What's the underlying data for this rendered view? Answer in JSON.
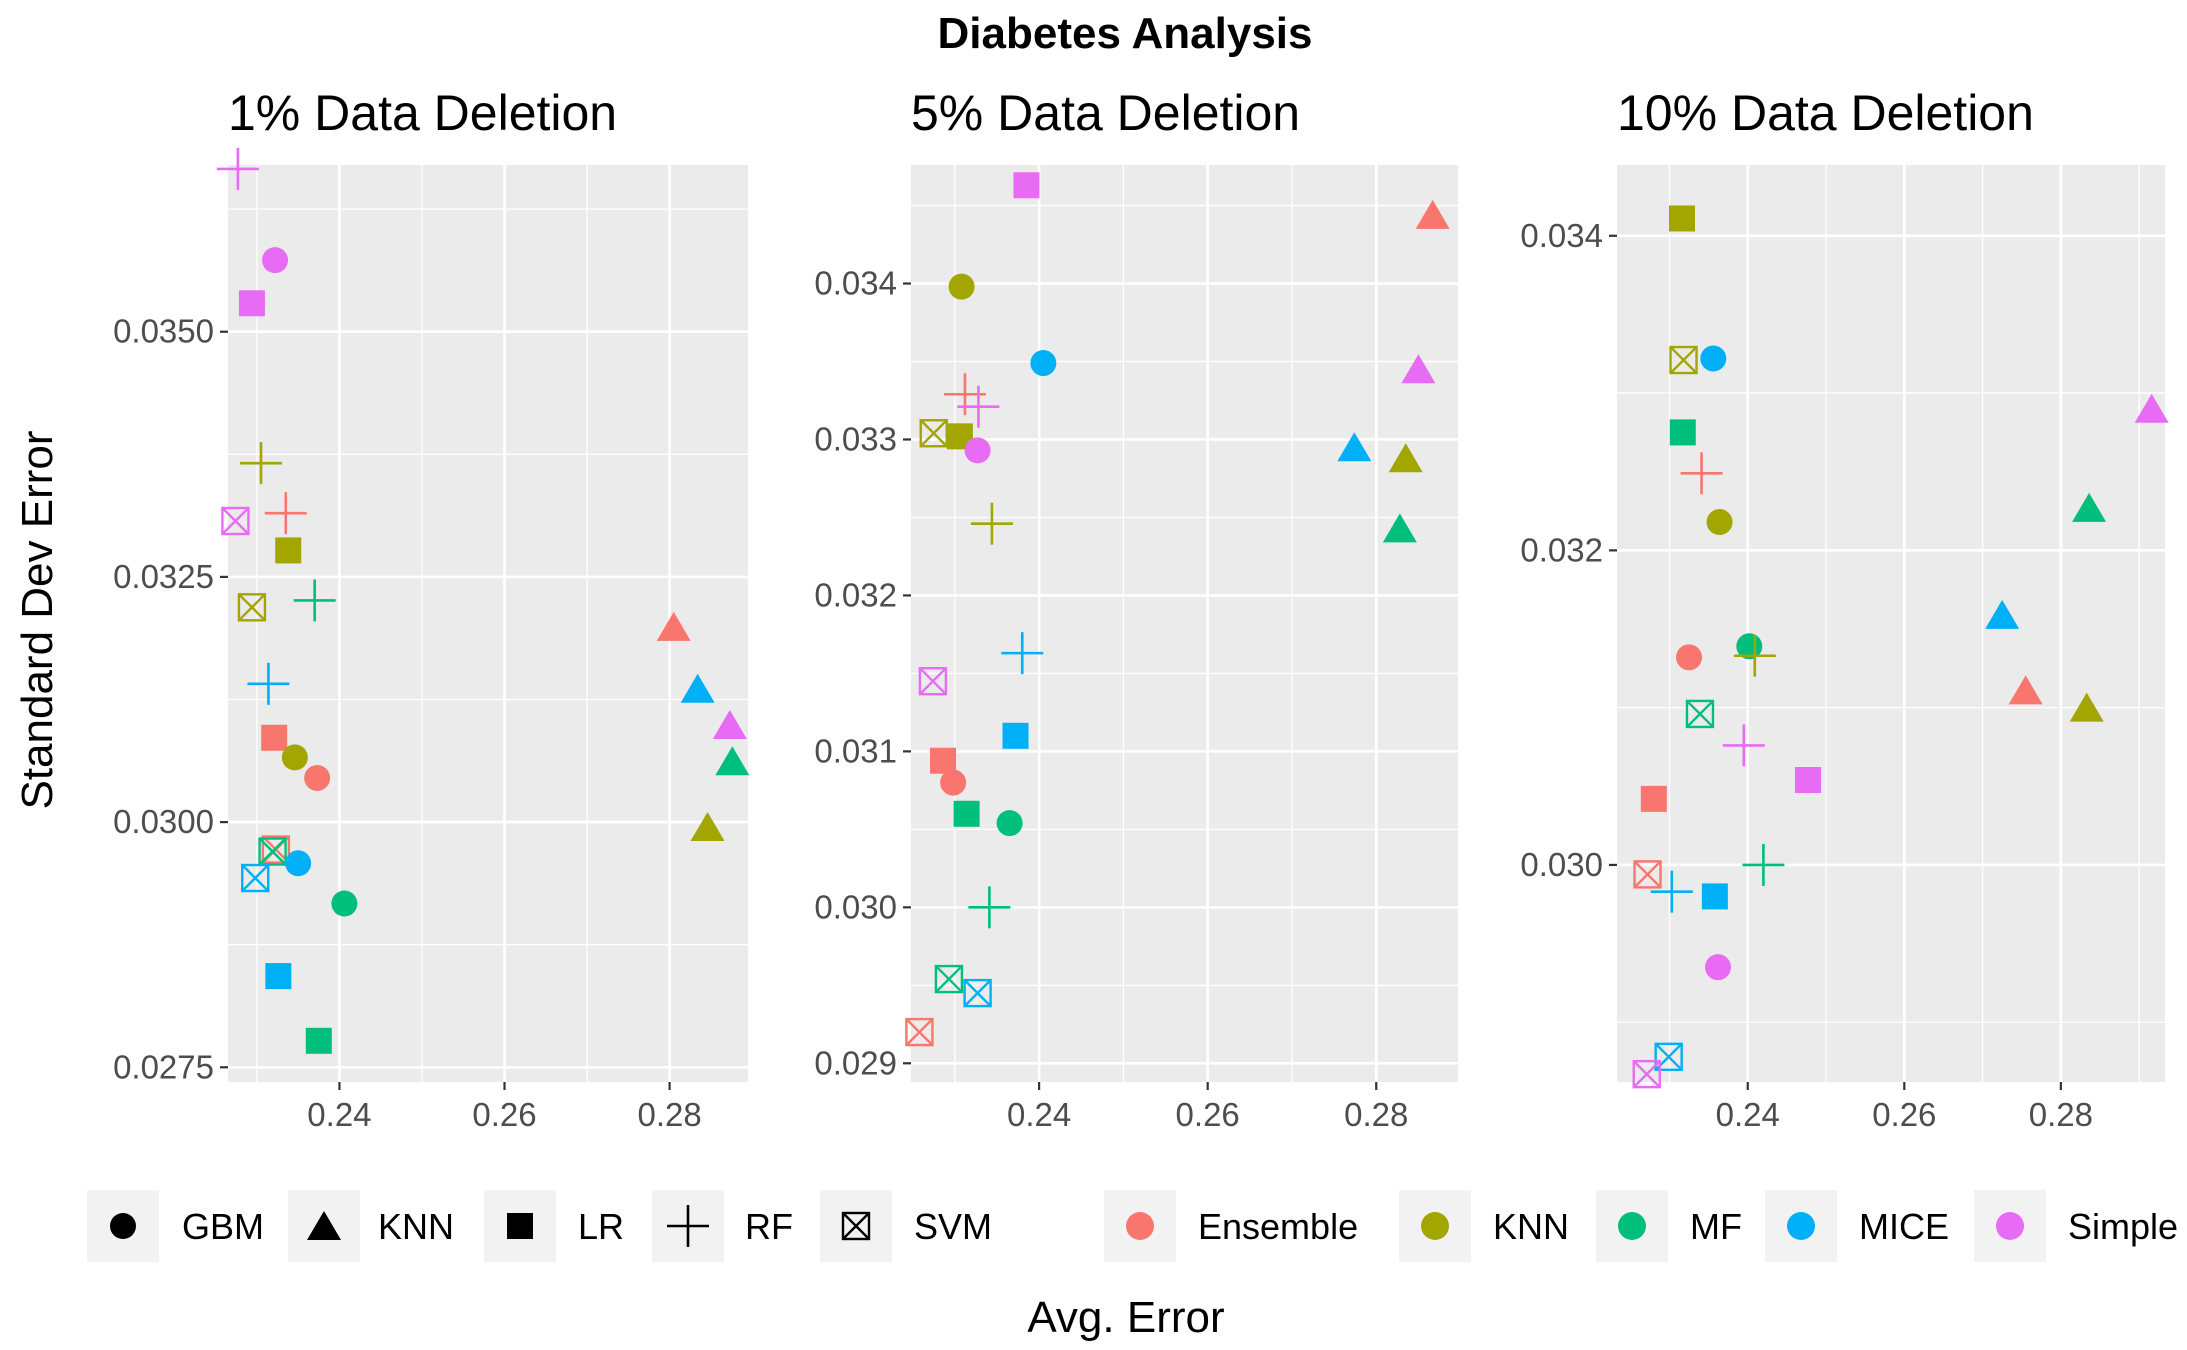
{
  "chart_data": {
    "type": "scatter",
    "title": "Diabetes Analysis",
    "xlabel": "Avg. Error",
    "ylabel": "Standard Dev Error",
    "grid": true,
    "legend_position": "bottom",
    "shape_legend": [
      {
        "name": "GBM",
        "shape": "circle"
      },
      {
        "name": "KNN",
        "shape": "triangle"
      },
      {
        "name": "LR",
        "shape": "square"
      },
      {
        "name": "RF",
        "shape": "plus"
      },
      {
        "name": "SVM",
        "shape": "boxx"
      }
    ],
    "color_legend": [
      {
        "name": "Ensemble",
        "color": "#F8766D"
      },
      {
        "name": "KNN",
        "color": "#A3A500"
      },
      {
        "name": "MF",
        "color": "#00BF7D"
      },
      {
        "name": "MICE",
        "color": "#00B0F6"
      },
      {
        "name": "Simple",
        "color": "#E76BF3"
      }
    ],
    "panels": [
      {
        "title": "1% Data Deletion",
        "xlim": [
          0.2265,
          0.2895
        ],
        "ylim": [
          0.02735,
          0.0367
        ],
        "x_ticks": [
          0.24,
          0.26,
          0.28
        ],
        "y_ticks": [
          0.0275,
          0.03,
          0.0325,
          0.035
        ],
        "y_tick_labels": [
          "0.0275",
          "0.0300",
          "0.0325",
          "0.0350"
        ],
        "points": [
          {
            "model": "RF",
            "imputer": "Simple",
            "x": 0.2277,
            "y": 0.03666
          },
          {
            "model": "GBM",
            "imputer": "Simple",
            "x": 0.2322,
            "y": 0.03573
          },
          {
            "model": "LR",
            "imputer": "Simple",
            "x": 0.2294,
            "y": 0.03529
          },
          {
            "model": "RF",
            "imputer": "KNN",
            "x": 0.2305,
            "y": 0.03366
          },
          {
            "model": "RF",
            "imputer": "Ensemble",
            "x": 0.2335,
            "y": 0.03315
          },
          {
            "model": "SVM",
            "imputer": "Simple",
            "x": 0.2274,
            "y": 0.03307
          },
          {
            "model": "LR",
            "imputer": "KNN",
            "x": 0.2338,
            "y": 0.03277
          },
          {
            "model": "RF",
            "imputer": "MF",
            "x": 0.237,
            "y": 0.03226
          },
          {
            "model": "SVM",
            "imputer": "KNN",
            "x": 0.2294,
            "y": 0.03219
          },
          {
            "model": "KNN",
            "imputer": "Ensemble",
            "x": 0.2805,
            "y": 0.03199
          },
          {
            "model": "RF",
            "imputer": "MICE",
            "x": 0.2314,
            "y": 0.03141
          },
          {
            "model": "KNN",
            "imputer": "MICE",
            "x": 0.2834,
            "y": 0.03136
          },
          {
            "model": "KNN",
            "imputer": "Simple",
            "x": 0.2873,
            "y": 0.03099
          },
          {
            "model": "LR",
            "imputer": "Ensemble",
            "x": 0.2321,
            "y": 0.03086
          },
          {
            "model": "GBM",
            "imputer": "KNN",
            "x": 0.2346,
            "y": 0.03066
          },
          {
            "model": "KNN",
            "imputer": "MF",
            "x": 0.2876,
            "y": 0.03062
          },
          {
            "model": "GBM",
            "imputer": "Ensemble",
            "x": 0.2373,
            "y": 0.03045
          },
          {
            "model": "KNN",
            "imputer": "KNN",
            "x": 0.2846,
            "y": 0.02995
          },
          {
            "model": "SVM",
            "imputer": "Ensemble",
            "x": 0.2323,
            "y": 0.02972
          },
          {
            "model": "SVM",
            "imputer": "MF",
            "x": 0.2319,
            "y": 0.0297
          },
          {
            "model": "GBM",
            "imputer": "MICE",
            "x": 0.235,
            "y": 0.02958
          },
          {
            "model": "SVM",
            "imputer": "MICE",
            "x": 0.2298,
            "y": 0.02943
          },
          {
            "model": "GBM",
            "imputer": "MF",
            "x": 0.2406,
            "y": 0.02917
          },
          {
            "model": "LR",
            "imputer": "MICE",
            "x": 0.2326,
            "y": 0.02843
          },
          {
            "model": "LR",
            "imputer": "MF",
            "x": 0.2375,
            "y": 0.02777
          }
        ]
      },
      {
        "title": "5% Data Deletion",
        "xlim": [
          0.2248,
          0.2897
        ],
        "ylim": [
          0.02888,
          0.03476
        ],
        "x_ticks": [
          0.24,
          0.26,
          0.28
        ],
        "y_ticks": [
          0.029,
          0.03,
          0.031,
          0.032,
          0.033,
          0.034
        ],
        "y_tick_labels": [
          "0.029",
          "0.030",
          "0.031",
          "0.032",
          "0.033",
          "0.034"
        ],
        "points": [
          {
            "model": "LR",
            "imputer": "Simple",
            "x": 0.2385,
            "y": 0.03463
          },
          {
            "model": "KNN",
            "imputer": "Ensemble",
            "x": 0.2867,
            "y": 0.03444
          },
          {
            "model": "GBM",
            "imputer": "KNN",
            "x": 0.2308,
            "y": 0.03398
          },
          {
            "model": "GBM",
            "imputer": "MICE",
            "x": 0.2405,
            "y": 0.03349
          },
          {
            "model": "KNN",
            "imputer": "Simple",
            "x": 0.285,
            "y": 0.03345
          },
          {
            "model": "RF",
            "imputer": "Ensemble",
            "x": 0.2312,
            "y": 0.03329
          },
          {
            "model": "RF",
            "imputer": "Simple",
            "x": 0.2328,
            "y": 0.03321
          },
          {
            "model": "SVM",
            "imputer": "KNN",
            "x": 0.2275,
            "y": 0.03304
          },
          {
            "model": "LR",
            "imputer": "KNN",
            "x": 0.2306,
            "y": 0.03302
          },
          {
            "model": "KNN",
            "imputer": "MICE",
            "x": 0.2774,
            "y": 0.03295
          },
          {
            "model": "GBM",
            "imputer": "Simple",
            "x": 0.2327,
            "y": 0.03293
          },
          {
            "model": "KNN",
            "imputer": "KNN",
            "x": 0.2835,
            "y": 0.03288
          },
          {
            "model": "RF",
            "imputer": "KNN",
            "x": 0.2344,
            "y": 0.03246
          },
          {
            "model": "KNN",
            "imputer": "MF",
            "x": 0.2828,
            "y": 0.03243
          },
          {
            "model": "RF",
            "imputer": "MICE",
            "x": 0.238,
            "y": 0.03163
          },
          {
            "model": "SVM",
            "imputer": "Simple",
            "x": 0.2274,
            "y": 0.03145
          },
          {
            "model": "LR",
            "imputer": "MICE",
            "x": 0.2372,
            "y": 0.0311
          },
          {
            "model": "LR",
            "imputer": "Ensemble",
            "x": 0.2286,
            "y": 0.03094
          },
          {
            "model": "GBM",
            "imputer": "Ensemble",
            "x": 0.2298,
            "y": 0.0308
          },
          {
            "model": "LR",
            "imputer": "MF",
            "x": 0.2314,
            "y": 0.0306
          },
          {
            "model": "GBM",
            "imputer": "MF",
            "x": 0.2365,
            "y": 0.03054
          },
          {
            "model": "RF",
            "imputer": "MF",
            "x": 0.2341,
            "y": 0.03
          },
          {
            "model": "SVM",
            "imputer": "MF",
            "x": 0.2293,
            "y": 0.02954
          },
          {
            "model": "SVM",
            "imputer": "MICE",
            "x": 0.2327,
            "y": 0.02945
          },
          {
            "model": "SVM",
            "imputer": "Ensemble",
            "x": 0.2258,
            "y": 0.0292
          }
        ]
      },
      {
        "title": "10% Data Deletion",
        "xlim": [
          0.2233,
          0.2933
        ],
        "ylim": [
          0.02862,
          0.03445
        ],
        "x_ticks": [
          0.24,
          0.26,
          0.28
        ],
        "y_ticks": [
          0.03,
          0.032,
          0.034
        ],
        "y_tick_labels": [
          "0.030",
          "0.032",
          "0.034"
        ],
        "points": [
          {
            "model": "LR",
            "imputer": "KNN",
            "x": 0.2316,
            "y": 0.03411
          },
          {
            "model": "GBM",
            "imputer": "MICE",
            "x": 0.2356,
            "y": 0.03322
          },
          {
            "model": "SVM",
            "imputer": "KNN",
            "x": 0.2318,
            "y": 0.03321
          },
          {
            "model": "KNN",
            "imputer": "Simple",
            "x": 0.2916,
            "y": 0.0329
          },
          {
            "model": "LR",
            "imputer": "MF",
            "x": 0.2317,
            "y": 0.03275
          },
          {
            "model": "RF",
            "imputer": "Ensemble",
            "x": 0.2341,
            "y": 0.03249
          },
          {
            "model": "KNN",
            "imputer": "MF",
            "x": 0.2836,
            "y": 0.03227
          },
          {
            "model": "GBM",
            "imputer": "KNN",
            "x": 0.2364,
            "y": 0.03218
          },
          {
            "model": "KNN",
            "imputer": "MICE",
            "x": 0.2725,
            "y": 0.03159
          },
          {
            "model": "GBM",
            "imputer": "MF",
            "x": 0.2402,
            "y": 0.03139
          },
          {
            "model": "RF",
            "imputer": "KNN",
            "x": 0.2409,
            "y": 0.03133
          },
          {
            "model": "GBM",
            "imputer": "Ensemble",
            "x": 0.2325,
            "y": 0.03132
          },
          {
            "model": "KNN",
            "imputer": "Ensemble",
            "x": 0.2755,
            "y": 0.03111
          },
          {
            "model": "KNN",
            "imputer": "KNN",
            "x": 0.2833,
            "y": 0.031
          },
          {
            "model": "SVM",
            "imputer": "MF",
            "x": 0.2339,
            "y": 0.03096
          },
          {
            "model": "RF",
            "imputer": "Simple",
            "x": 0.2395,
            "y": 0.03076
          },
          {
            "model": "LR",
            "imputer": "Simple",
            "x": 0.2477,
            "y": 0.03054
          },
          {
            "model": "LR",
            "imputer": "Ensemble",
            "x": 0.228,
            "y": 0.03042
          },
          {
            "model": "RF",
            "imputer": "MF",
            "x": 0.242,
            "y": 0.03
          },
          {
            "model": "SVM",
            "imputer": "Ensemble",
            "x": 0.2272,
            "y": 0.02994
          },
          {
            "model": "RF",
            "imputer": "MICE",
            "x": 0.2303,
            "y": 0.02983
          },
          {
            "model": "LR",
            "imputer": "MICE",
            "x": 0.2358,
            "y": 0.0298
          },
          {
            "model": "GBM",
            "imputer": "Simple",
            "x": 0.2362,
            "y": 0.02935
          },
          {
            "model": "SVM",
            "imputer": "MICE",
            "x": 0.2299,
            "y": 0.02878
          },
          {
            "model": "SVM",
            "imputer": "Simple",
            "x": 0.2271,
            "y": 0.02867
          }
        ]
      }
    ]
  }
}
